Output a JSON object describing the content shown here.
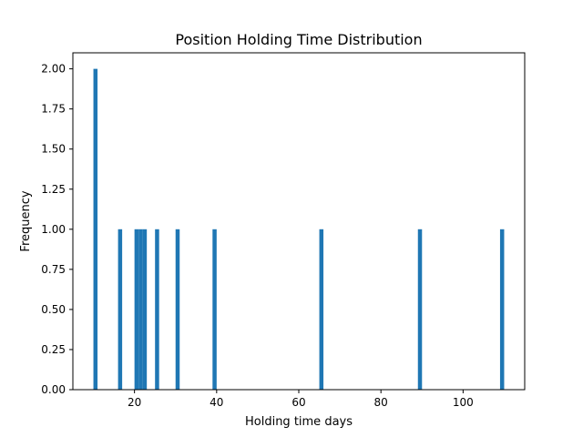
{
  "chart_data": {
    "type": "bar",
    "title": "Position Holding Time Distribution",
    "xlabel": "Holding time days",
    "ylabel": "Frequency",
    "xlim": [
      5,
      115
    ],
    "ylim": [
      0,
      2.1
    ],
    "bin_width": 1,
    "grid": false,
    "legend": "none",
    "bar_color": "#1f77b4",
    "x_ticks": [
      20,
      40,
      60,
      80,
      100
    ],
    "y_ticks": [
      0.0,
      0.25,
      0.5,
      0.75,
      1.0,
      1.25,
      1.5,
      1.75,
      2.0
    ],
    "x_tick_labels": [
      "20",
      "40",
      "60",
      "80",
      "100"
    ],
    "y_tick_labels": [
      "0.00",
      "0.25",
      "0.50",
      "0.75",
      "1.00",
      "1.25",
      "1.50",
      "1.75",
      "2.00"
    ],
    "bars": [
      {
        "x": 10.5,
        "value": 2
      },
      {
        "x": 16.5,
        "value": 1
      },
      {
        "x": 20.5,
        "value": 1
      },
      {
        "x": 21.5,
        "value": 1
      },
      {
        "x": 22.5,
        "value": 1
      },
      {
        "x": 25.5,
        "value": 1
      },
      {
        "x": 30.5,
        "value": 1
      },
      {
        "x": 39.5,
        "value": 1
      },
      {
        "x": 65.5,
        "value": 1
      },
      {
        "x": 89.5,
        "value": 1
      },
      {
        "x": 109.5,
        "value": 1
      }
    ]
  }
}
